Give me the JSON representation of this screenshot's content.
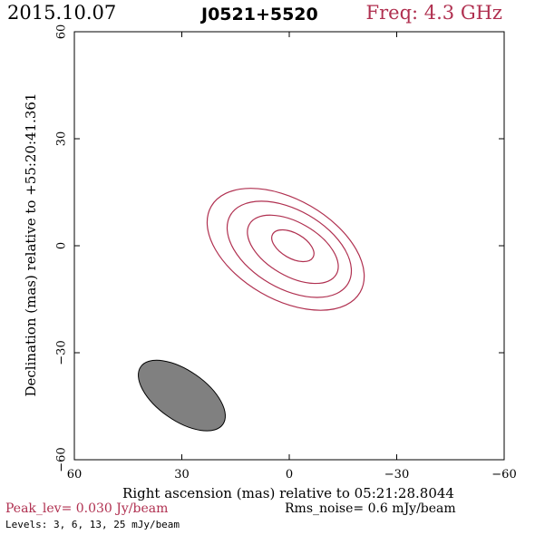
{
  "header": {
    "date": "2015.10.07",
    "source": "J0521+5520",
    "freq_label": "Freq: 4.3 GHz"
  },
  "chart_data": {
    "type": "contour",
    "xlabel": "Right ascension (mas) relative to 05:21:28.8044",
    "ylabel": "Declination (mas) relative to +55:20:41.361",
    "xlim": [
      60,
      -60
    ],
    "ylim": [
      -60,
      60
    ],
    "x_ticks": [
      60,
      30,
      0,
      -30,
      -60
    ],
    "y_ticks": [
      -60,
      -30,
      0,
      30,
      60
    ],
    "x_tick_labels": [
      "60",
      "30",
      "0",
      "−30",
      "−60"
    ],
    "y_tick_labels": [
      "−60",
      "−30",
      "0",
      "30",
      "60"
    ],
    "contours": [
      {
        "level_mJy": 3,
        "center": [
          1,
          -1
        ],
        "a": 24,
        "b": 14,
        "pa_deg": 150,
        "color": "#b03050"
      },
      {
        "level_mJy": 6,
        "center": [
          0,
          -1
        ],
        "a": 19,
        "b": 11,
        "pa_deg": 150,
        "color": "#b03050"
      },
      {
        "level_mJy": 13,
        "center": [
          -1,
          -1
        ],
        "a": 14,
        "b": 7.5,
        "pa_deg": 150,
        "color": "#b03050"
      },
      {
        "level_mJy": 25,
        "center": [
          -1,
          0
        ],
        "a": 6.5,
        "b": 3.5,
        "pa_deg": 150,
        "color": "#b03050"
      }
    ],
    "beam": {
      "center": [
        30,
        -42
      ],
      "a": 14,
      "b": 7,
      "pa_deg": 145,
      "fill": "#808080"
    },
    "grid": false,
    "peak_label": "Peak_lev=  0.030 Jy/beam",
    "rms_label": "Rms_noise=  0.6 mJy/beam",
    "levels_label": "Levels:  3,  6,  13,  25 mJy/beam"
  },
  "colors": {
    "accent": "#b03050"
  }
}
